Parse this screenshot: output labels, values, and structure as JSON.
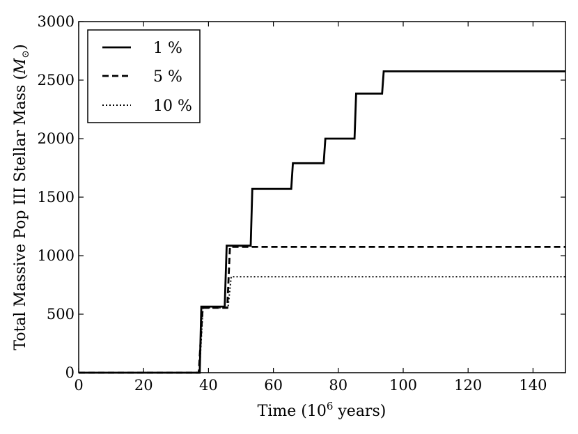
{
  "chart_data": {
    "type": "line",
    "title": "",
    "xlabel": "Time (10^6 years)",
    "xlabel_main": "Time (10",
    "xlabel_sup": "6",
    "xlabel_tail": " years)",
    "ylabel": "Total Massive Pop III Stellar Mass (M☉)",
    "ylabel_main": "Total Massive Pop III Stellar Mass (",
    "ylabel_sym": "M",
    "ylabel_sub": "⊙",
    "ylabel_tail": ")",
    "xlim": [
      0,
      150
    ],
    "ylim": [
      0,
      3000
    ],
    "xticks": [
      0,
      20,
      40,
      60,
      80,
      100,
      120,
      140
    ],
    "yticks": [
      0,
      500,
      1000,
      1500,
      2000,
      2500,
      3000
    ],
    "xtick_labels": [
      "0",
      "20",
      "40",
      "60",
      "80",
      "100",
      "120",
      "140"
    ],
    "ytick_labels": [
      "0",
      "500",
      "1000",
      "1500",
      "2000",
      "2500",
      "3000"
    ],
    "grid": false,
    "legend_position": "top-left",
    "series": [
      {
        "name": "1 %",
        "style": "solid",
        "x": [
          0,
          37.3,
          37.8,
          45.0,
          45.6,
          53.0,
          53.5,
          65.5,
          66.0,
          75.5,
          76.0,
          85.0,
          85.5,
          93.5,
          94.0,
          150
        ],
        "y": [
          0,
          0,
          565,
          565,
          1085,
          1085,
          1570,
          1570,
          1790,
          1790,
          2000,
          2000,
          2385,
          2385,
          2575,
          2575
        ]
      },
      {
        "name": "5 %",
        "style": "dashed",
        "x": [
          0,
          37.0,
          38.2,
          45.8,
          46.6,
          150
        ],
        "y": [
          0,
          0,
          555,
          555,
          1075,
          1075
        ]
      },
      {
        "name": "10 %",
        "style": "dotted",
        "x": [
          0,
          37.2,
          38.3,
          46.0,
          47.0,
          150
        ],
        "y": [
          0,
          0,
          555,
          555,
          820,
          820
        ]
      }
    ],
    "colors": {
      "line": "#000000",
      "background": "#ffffff"
    }
  }
}
